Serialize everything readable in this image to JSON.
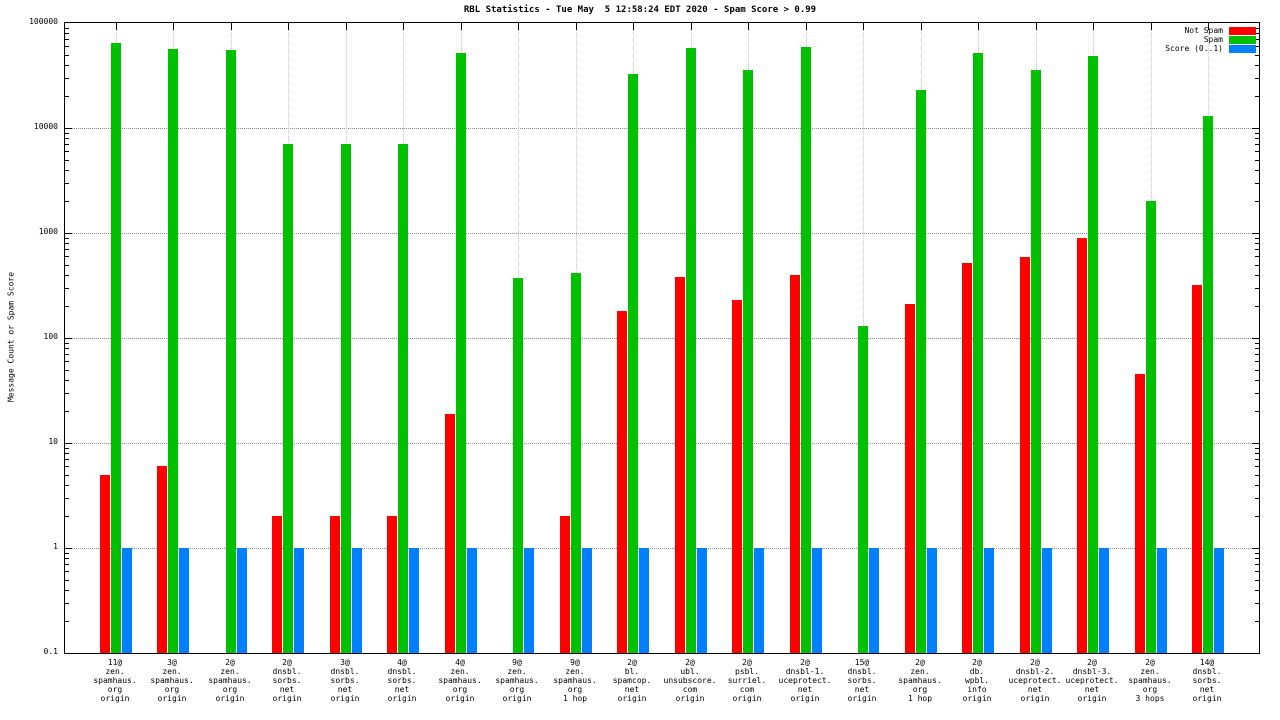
{
  "chart_data": {
    "type": "bar",
    "title": "RBL Statistics - Tue May  5 12:58:24 EDT 2020 - Spam Score > 0.99",
    "ylabel": "Message Count or Spam Score",
    "xlabel": "",
    "yscale": "log",
    "ylim": [
      0.1,
      100000
    ],
    "ytick_labels": [
      "0.1",
      "1",
      "10",
      "100",
      "1000",
      "10000",
      "100000"
    ],
    "grid": "on",
    "legend_position": "top-right",
    "categories": [
      [
        "11@",
        "zen.",
        "spamhaus.",
        "org",
        "origin"
      ],
      [
        "3@",
        "zen.",
        "spamhaus.",
        "org",
        "origin"
      ],
      [
        "2@",
        "zen.",
        "spamhaus.",
        "org",
        "origin"
      ],
      [
        "2@",
        "dnsbl.",
        "sorbs.",
        "net",
        "origin"
      ],
      [
        "3@",
        "dnsbl.",
        "sorbs.",
        "net",
        "origin"
      ],
      [
        "4@",
        "dnsbl.",
        "sorbs.",
        "net",
        "origin"
      ],
      [
        "4@",
        "zen.",
        "spamhaus.",
        "org",
        "origin"
      ],
      [
        "9@",
        "zen.",
        "spamhaus.",
        "org",
        "origin"
      ],
      [
        "9@",
        "zen.",
        "spamhaus.",
        "org",
        "1 hop"
      ],
      [
        "2@",
        "bl.",
        "spamcop.",
        "net",
        "origin"
      ],
      [
        "2@",
        "ubl.",
        "unsubscore.",
        "com",
        "origin"
      ],
      [
        "2@",
        "psbl.",
        "surriel.",
        "com",
        "origin"
      ],
      [
        "2@",
        "dnsbl-1.",
        "uceprotect.",
        "net",
        "origin"
      ],
      [
        "15@",
        "dnsbl.",
        "sorbs.",
        "net",
        "origin"
      ],
      [
        "2@",
        "zen.",
        "spamhaus.",
        "org",
        "1 hop"
      ],
      [
        "2@",
        "db.",
        "wpbl.",
        "info",
        "origin"
      ],
      [
        "2@",
        "dnsbl-2.",
        "uceprotect.",
        "net",
        "origin"
      ],
      [
        "2@",
        "dnsbl-3.",
        "uceprotect.",
        "net",
        "origin"
      ],
      [
        "2@",
        "zen.",
        "spamhaus.",
        "org",
        "3 hops"
      ],
      [
        "14@",
        "dnsbl.",
        "sorbs.",
        "net",
        "origin"
      ]
    ],
    "series": [
      {
        "name": "Not Spam",
        "color": "#ff0000",
        "values": [
          5,
          6,
          0,
          2,
          2,
          2,
          19,
          0,
          2,
          180,
          380,
          230,
          400,
          0,
          210,
          520,
          590,
          900,
          45,
          320
        ]
      },
      {
        "name": "Spam",
        "color": "#00c000",
        "values": [
          65000,
          57000,
          55000,
          7000,
          7000,
          7000,
          52000,
          370,
          420,
          33000,
          58000,
          36000,
          59000,
          130,
          23000,
          52000,
          36000,
          48000,
          2000,
          13000
        ]
      },
      {
        "name": "Score (0..1)",
        "color": "#0080ff",
        "values": [
          1,
          1,
          1,
          1,
          1,
          1,
          1,
          1,
          1,
          1,
          1,
          1,
          1,
          1,
          1,
          1,
          1,
          1,
          1,
          1
        ]
      }
    ]
  }
}
